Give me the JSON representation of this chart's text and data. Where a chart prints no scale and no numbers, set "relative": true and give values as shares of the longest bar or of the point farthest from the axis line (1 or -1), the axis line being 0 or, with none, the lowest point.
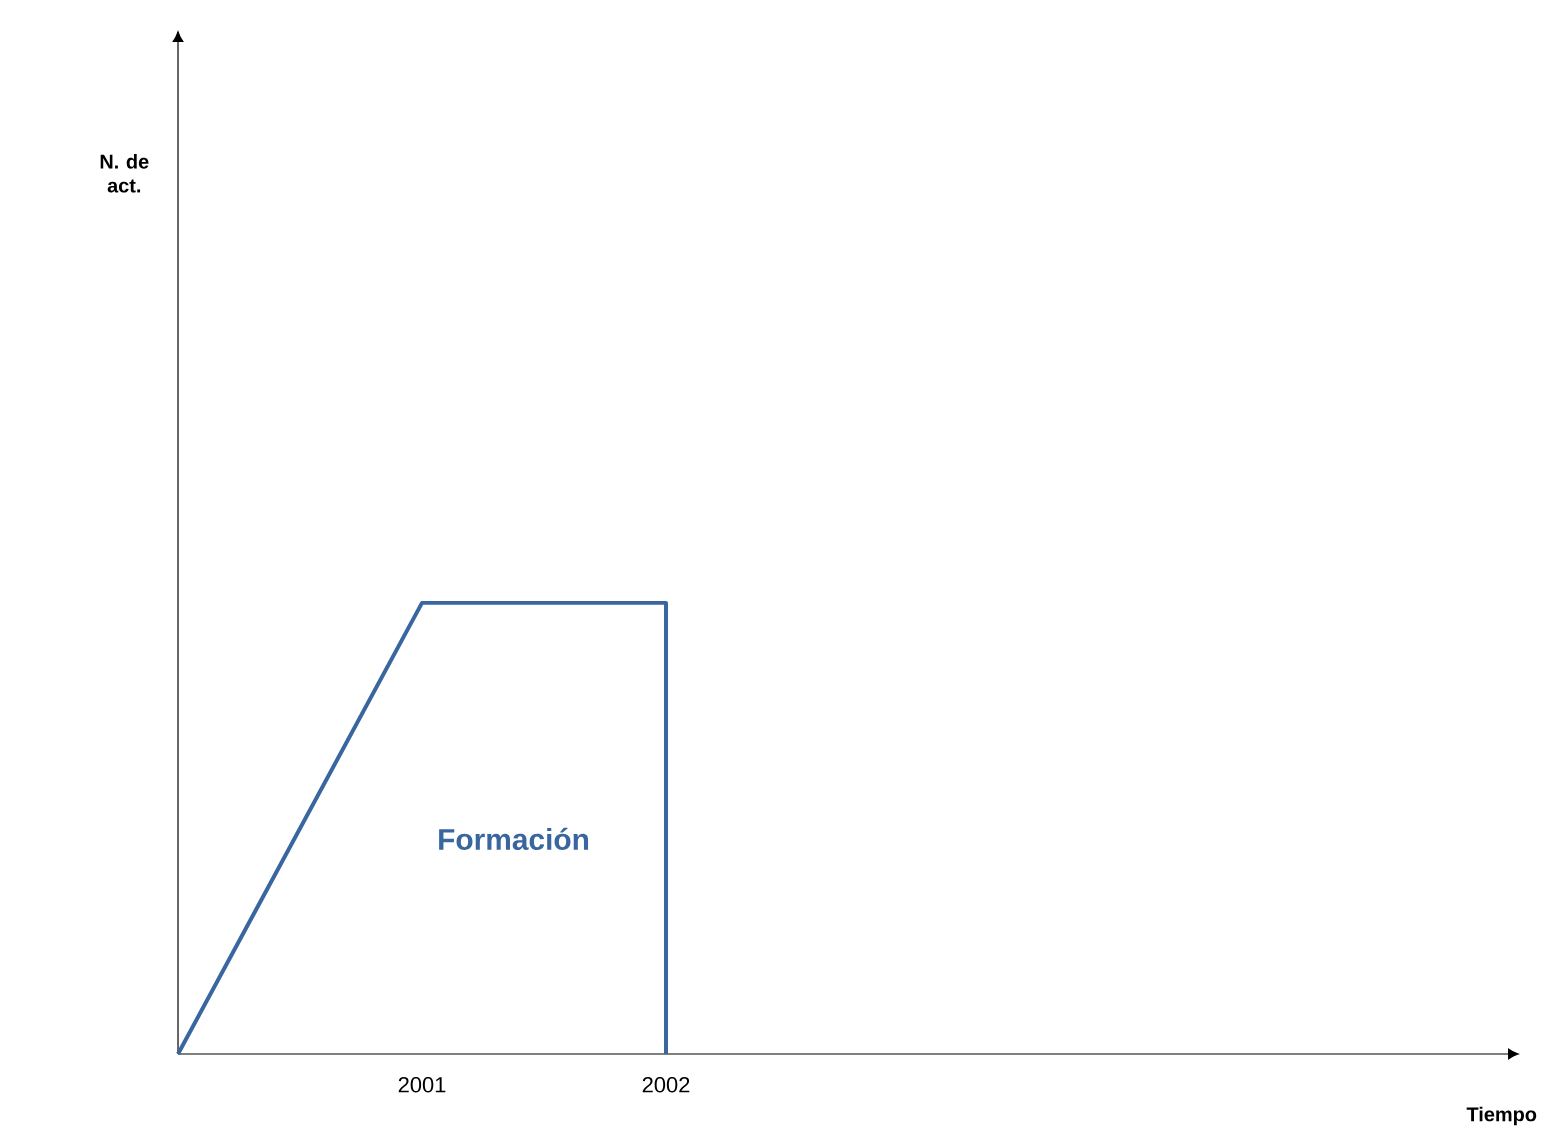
{
  "chart_data": {
    "type": "line",
    "relative": true,
    "xlabel": "Tiempo",
    "x": [
      2000,
      2001,
      2002,
      2002
    ],
    "values": [
      0,
      1,
      1,
      0
    ],
    "color": "#3a66a0",
    "xlim": [
      2000,
      2005.5
    ],
    "xticks": [
      2001,
      2002
    ],
    "tick_labels": "x",
    "annotations": [
      "N. de act.",
      "Formación"
    ]
  }
}
